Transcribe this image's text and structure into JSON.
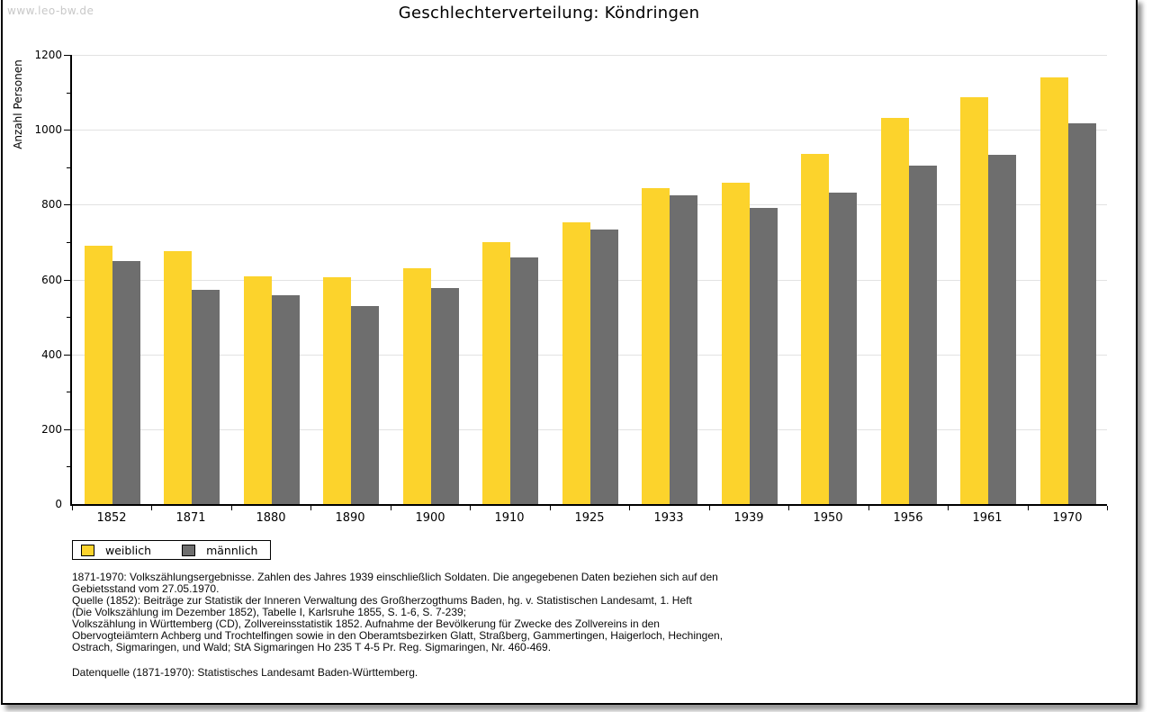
{
  "page": {
    "watermark": "www.leo-bw.de"
  },
  "chart_data": {
    "type": "bar",
    "title": "Geschlechterverteilung: Köndringen",
    "ylabel": "Anzahl Personen",
    "xlabel": "",
    "ylim": [
      0,
      1200
    ],
    "ytick_interval": 200,
    "minor_tick_interval": 100,
    "grid": true,
    "legend_position": "bottom-left",
    "categories": [
      "1852",
      "1871",
      "1880",
      "1890",
      "1900",
      "1910",
      "1925",
      "1933",
      "1939",
      "1950",
      "1956",
      "1961",
      "1970"
    ],
    "series": [
      {
        "name": "weiblich",
        "color": "#FCD32C",
        "values": [
          690,
          675,
          608,
          606,
          630,
          700,
          752,
          843,
          858,
          935,
          1032,
          1087,
          1140
        ]
      },
      {
        "name": "männlich",
        "color": "#6E6E6E",
        "values": [
          650,
          572,
          558,
          528,
          577,
          660,
          734,
          825,
          790,
          832,
          905,
          933,
          1018
        ]
      }
    ]
  },
  "footnotes": {
    "lines": [
      "1871-1970: Volkszählungsergebnisse. Zahlen des Jahres 1939 einschließlich Soldaten. Die angegebenen Daten beziehen sich auf den",
      "Gebietsstand vom 27.05.1970.",
      "Quelle (1852): Beiträge zur Statistik der Inneren Verwaltung des Großherzogthums Baden, hg. v. Statistischen Landesamt, 1. Heft",
      "(Die Volkszählung im Dezember 1852), Tabelle I, Karlsruhe 1855, S. 1-6, S. 7-239;",
      "Volkszählung in Württemberg (CD), Zollvereinsstatistik 1852. Aufnahme der Bevölkerung für Zwecke des Zollvereins in den",
      "Obervogteiämtern Achberg und Trochtelfingen sowie in den Oberamtsbezirken Glatt, Straßberg, Gammertingen, Haigerloch, Hechingen,",
      "Ostrach, Sigmaringen, und Wald; StA Sigmaringen Ho 235 T 4-5 Pr. Reg. Sigmaringen, Nr. 460-469."
    ],
    "datenquelle": "Datenquelle (1871-1970): Statistisches Landesamt Baden-Württemberg."
  },
  "colors": {
    "gridline": "#E2E2E2",
    "watermark": "#C8C8C8",
    "axis": "#000000"
  }
}
